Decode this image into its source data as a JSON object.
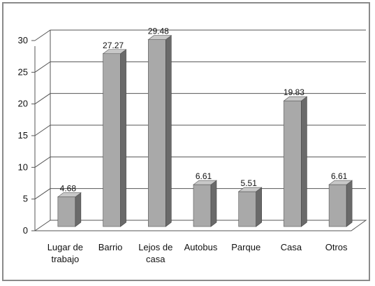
{
  "chart_data": {
    "type": "bar",
    "categories": [
      "Lugar de trabajo",
      "Barrio",
      "Lejos de casa",
      "Autobus",
      "Parque",
      "Casa",
      "Otros"
    ],
    "category_lines": [
      [
        "Lugar de",
        "trabajo"
      ],
      [
        "Barrio"
      ],
      [
        "Lejos de",
        "casa"
      ],
      [
        "Autobus"
      ],
      [
        "Parque"
      ],
      [
        "Casa"
      ],
      [
        "Otros"
      ]
    ],
    "values": [
      4.68,
      27.27,
      29.48,
      6.61,
      5.51,
      19.83,
      6.61
    ],
    "value_labels": [
      "4.68",
      "27.27",
      "29.48",
      "6.61",
      "5.51",
      "19.83",
      "6.61"
    ],
    "yticks": [
      "0",
      "5",
      "10",
      "15",
      "20",
      "25",
      "30"
    ],
    "ylim": [
      0,
      30
    ],
    "title": "",
    "xlabel": "",
    "ylabel": "",
    "grid": true,
    "style": "3d-bar",
    "colors": {
      "bar_front": "#a9a9a9",
      "bar_side": "#6a6a6a",
      "bar_top": "#c8c8c8",
      "grid": "#555555",
      "frame": "#8a8a8a"
    }
  }
}
